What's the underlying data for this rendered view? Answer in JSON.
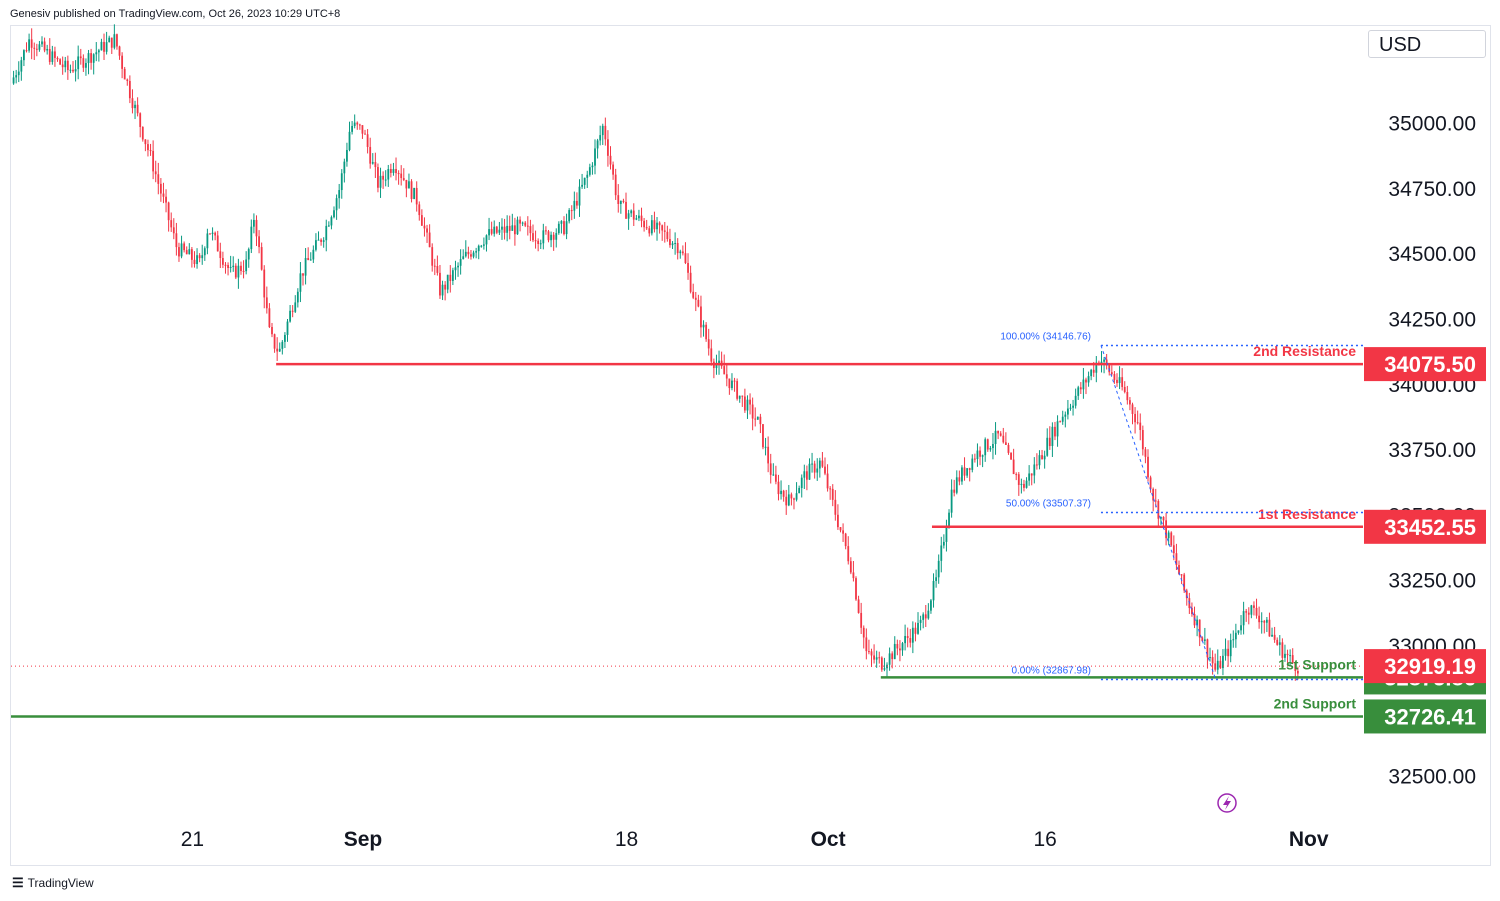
{
  "header": {
    "publisher": "Genesiv published on TradingView.com, Oct 26, 2023 10:29 UTC+8"
  },
  "currency": "USD",
  "footer": {
    "brand": "TradingView",
    "logo_icon": "tradingview-logo-icon"
  },
  "colors": {
    "up": "#089981",
    "down": "#f23645",
    "resistance": "#f23645",
    "support": "#388e3c",
    "fib": "#2962ff",
    "current": "#f23645"
  },
  "chart_data": {
    "type": "candlestick",
    "y_axis": {
      "ticks": [
        "35000.00",
        "34750.00",
        "34500.00",
        "34250.00",
        "34000.00",
        "33750.00",
        "33500.00",
        "33250.00",
        "33000.00",
        "32500.00"
      ],
      "range": [
        32330,
        35370
      ]
    },
    "x_axis": {
      "ticks": [
        {
          "label": "21",
          "day": 0,
          "bold": false
        },
        {
          "label": "Sep",
          "day": 11,
          "bold": true
        },
        {
          "label": "18",
          "day": 28,
          "bold": false
        },
        {
          "label": "Oct",
          "day": 41,
          "bold": true
        },
        {
          "label": "16",
          "day": 55,
          "bold": false
        },
        {
          "label": "Nov",
          "day": 72,
          "bold": true
        }
      ],
      "range_days": [
        -11.7,
        75.5
      ]
    },
    "levels": [
      {
        "name": "2nd Resistance",
        "value": 34075.5,
        "label": "34075.50",
        "type": "resistance",
        "start_day": 5.4
      },
      {
        "name": "1st Resistance",
        "value": 33452.55,
        "label": "33452.55",
        "type": "resistance",
        "start_day": 47.7
      },
      {
        "name": "1st Support",
        "value": 32875.86,
        "label": "32875.86",
        "type": "support",
        "start_day": 44.4
      },
      {
        "name": "2nd Support",
        "value": 32726.41,
        "label": "32726.41",
        "type": "support",
        "start_day": -11.7
      }
    ],
    "last_price": {
      "value": 32919.19,
      "label": "32919.19"
    },
    "fibonacci": [
      {
        "label": "100.00% (34146.76)",
        "value": 34146.76
      },
      {
        "label": "50.00% (33507.37)",
        "value": 33507.37
      },
      {
        "label": "0.00% (32867.98)",
        "value": 32867.98
      }
    ],
    "fib_span_days": [
      58.6,
      72.1
    ],
    "price_path": [
      {
        "day": -11.7,
        "price": 35150
      },
      {
        "day": -10.5,
        "price": 35320
      },
      {
        "day": -8,
        "price": 35200
      },
      {
        "day": -5,
        "price": 35320
      },
      {
        "day": -4,
        "price": 35110
      },
      {
        "day": -2.5,
        "price": 34830
      },
      {
        "day": -1,
        "price": 34520
      },
      {
        "day": 0.5,
        "price": 34460
      },
      {
        "day": 1,
        "price": 34600
      },
      {
        "day": 2.5,
        "price": 34420
      },
      {
        "day": 3.5,
        "price": 34460
      },
      {
        "day": 4,
        "price": 34650
      },
      {
        "day": 5,
        "price": 34180
      },
      {
        "day": 5.6,
        "price": 34120
      },
      {
        "day": 7,
        "price": 34420
      },
      {
        "day": 8.5,
        "price": 34580
      },
      {
        "day": 9.5,
        "price": 34750
      },
      {
        "day": 10.2,
        "price": 34990
      },
      {
        "day": 11,
        "price": 34970
      },
      {
        "day": 12,
        "price": 34760
      },
      {
        "day": 13,
        "price": 34850
      },
      {
        "day": 14.5,
        "price": 34700
      },
      {
        "day": 16,
        "price": 34350
      },
      {
        "day": 17.5,
        "price": 34480
      },
      {
        "day": 19,
        "price": 34570
      },
      {
        "day": 21,
        "price": 34600
      },
      {
        "day": 22.5,
        "price": 34560
      },
      {
        "day": 24,
        "price": 34600
      },
      {
        "day": 25.5,
        "price": 34800
      },
      {
        "day": 26.5,
        "price": 34990
      },
      {
        "day": 27.5,
        "price": 34680
      },
      {
        "day": 29,
        "price": 34620
      },
      {
        "day": 30.5,
        "price": 34570
      },
      {
        "day": 31.5,
        "price": 34520
      },
      {
        "day": 32.5,
        "price": 34300
      },
      {
        "day": 33.5,
        "price": 34100
      },
      {
        "day": 35,
        "price": 33980
      },
      {
        "day": 36.5,
        "price": 33850
      },
      {
        "day": 37.5,
        "price": 33620
      },
      {
        "day": 38.5,
        "price": 33550
      },
      {
        "day": 39.5,
        "price": 33650
      },
      {
        "day": 40.5,
        "price": 33700
      },
      {
        "day": 41.5,
        "price": 33500
      },
      {
        "day": 42.5,
        "price": 33300
      },
      {
        "day": 43.5,
        "price": 32960
      },
      {
        "day": 44.5,
        "price": 32930
      },
      {
        "day": 45.5,
        "price": 32990
      },
      {
        "day": 47,
        "price": 33080
      },
      {
        "day": 48,
        "price": 33250
      },
      {
        "day": 49,
        "price": 33600
      },
      {
        "day": 50.5,
        "price": 33730
      },
      {
        "day": 52,
        "price": 33800
      },
      {
        "day": 53.5,
        "price": 33600
      },
      {
        "day": 54.5,
        "price": 33700
      },
      {
        "day": 56,
        "price": 33870
      },
      {
        "day": 57.5,
        "price": 34000
      },
      {
        "day": 58.5,
        "price": 34100
      },
      {
        "day": 60,
        "price": 33980
      },
      {
        "day": 61,
        "price": 33850
      },
      {
        "day": 62,
        "price": 33560
      },
      {
        "day": 63,
        "price": 33400
      },
      {
        "day": 64,
        "price": 33200
      },
      {
        "day": 65,
        "price": 33050
      },
      {
        "day": 66,
        "price": 32900
      },
      {
        "day": 67,
        "price": 33000
      },
      {
        "day": 68,
        "price": 33150
      },
      {
        "day": 69,
        "price": 33100
      },
      {
        "day": 70,
        "price": 33000
      },
      {
        "day": 71,
        "price": 32930
      },
      {
        "day": 71.3,
        "price": 32919.19
      }
    ]
  }
}
